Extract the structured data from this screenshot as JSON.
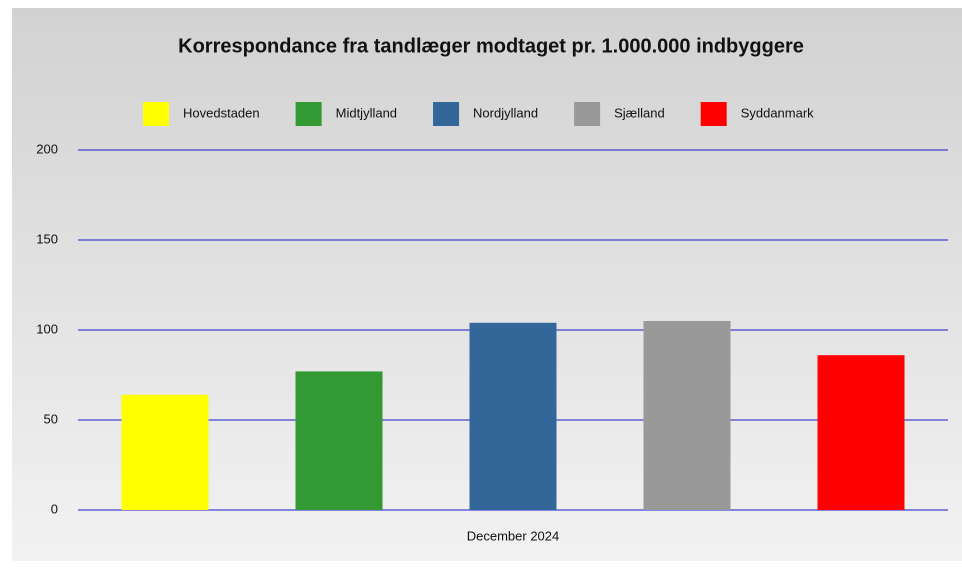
{
  "chart_data": {
    "type": "bar",
    "title": "Korrespondance fra tandlæger modtaget pr. 1.000.000 indbyggere",
    "categories": [
      "December 2024"
    ],
    "series": [
      {
        "name": "Hovedstaden",
        "color": "#ffff00",
        "values": [
          64
        ]
      },
      {
        "name": "Midtjylland",
        "color": "#339933",
        "values": [
          77
        ]
      },
      {
        "name": "Nordjylland",
        "color": "#336699",
        "values": [
          104
        ]
      },
      {
        "name": "Sjælland",
        "color": "#999999",
        "values": [
          105
        ]
      },
      {
        "name": "Syddanmark",
        "color": "#ff0000",
        "values": [
          86
        ]
      }
    ],
    "ylim": [
      0,
      200
    ],
    "yticks": [
      0,
      50,
      100,
      150,
      200
    ],
    "grid": true,
    "legend": "top"
  }
}
